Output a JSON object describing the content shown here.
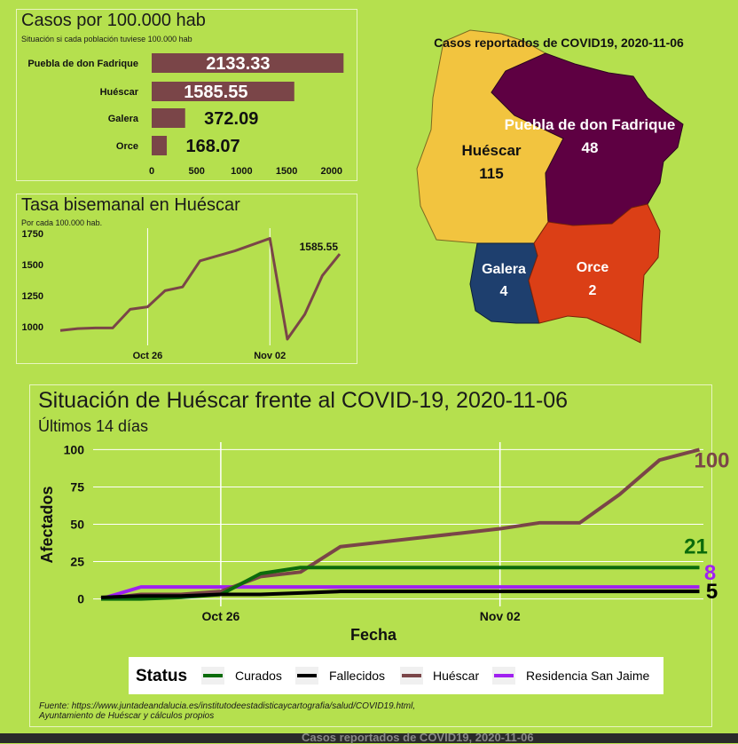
{
  "chart_data": [
    {
      "type": "bar",
      "title": "Casos por 100.000 hab",
      "subtitle": "Situación si cada población tuviese 100.000 hab",
      "categories": [
        "Puebla de don Fadrique",
        "Huéscar",
        "Galera",
        "Orce"
      ],
      "values": [
        2133.33,
        1585.55,
        372.09,
        168.07
      ],
      "value_labels": [
        "2133.33",
        "1585.55",
        "372.09",
        "168.07"
      ],
      "xlim": [
        0,
        2150
      ],
      "xticks": [
        "0",
        "500",
        "1000",
        "1500",
        "2000"
      ],
      "bar_color": "#7a4548"
    },
    {
      "type": "line",
      "title": "Tasa bisemanal en Huéscar",
      "subtitle": "Por cada 100.000 hab.",
      "x": [
        "2020-10-21",
        "2020-10-22",
        "2020-10-23",
        "2020-10-24",
        "2020-10-25",
        "2020-10-26",
        "2020-10-27",
        "2020-10-28",
        "2020-10-29",
        "2020-10-30",
        "2020-10-31",
        "2020-11-01",
        "2020-11-02",
        "2020-11-03",
        "2020-11-04",
        "2020-11-05",
        "2020-11-06"
      ],
      "values": [
        970,
        985,
        990,
        990,
        1140,
        1160,
        1290,
        1320,
        1530,
        1570,
        1610,
        1660,
        1710,
        900,
        1100,
        1410,
        1585.55
      ],
      "ylim": [
        850,
        1750
      ],
      "yticks": [
        "1000",
        "1250",
        "1500",
        "1750"
      ],
      "xticks": [
        "Oct 26",
        "Nov 02"
      ],
      "annotation": "1585.55",
      "line_color": "#7a4548"
    },
    {
      "type": "line",
      "title": "Situación de Huéscar frente al COVID-19, 2020-11-06",
      "subtitle": "Últimos 14 días",
      "xlabel": "Fecha",
      "ylabel": "Afectados",
      "x": [
        "2020-10-23",
        "2020-10-24",
        "2020-10-25",
        "2020-10-26",
        "2020-10-27",
        "2020-10-28",
        "2020-10-29",
        "2020-10-30",
        "2020-10-31",
        "2020-11-01",
        "2020-11-02",
        "2020-11-03",
        "2020-11-04",
        "2020-11-05",
        "2020-11-06",
        "2020-11-07"
      ],
      "ylim": [
        -5,
        105
      ],
      "yticks": [
        "0",
        "25",
        "50",
        "75",
        "100"
      ],
      "xticks": [
        "Oct 26",
        "Nov 02"
      ],
      "series": [
        {
          "name": "Curados",
          "color": "#0b6b0b",
          "values": [
            0,
            0,
            1,
            3,
            17,
            21,
            21,
            21,
            21,
            21,
            21,
            21,
            21,
            21,
            21,
            21
          ],
          "end_label": "21"
        },
        {
          "name": "Fallecidos",
          "color": "#000000",
          "values": [
            1,
            2,
            2,
            3,
            3,
            4,
            5,
            5,
            5,
            5,
            5,
            5,
            5,
            5,
            5,
            5
          ],
          "end_label": "5"
        },
        {
          "name": "Huéscar",
          "color": "#7a4548",
          "values": [
            0,
            3,
            3,
            5,
            15,
            18,
            35,
            38,
            41,
            44,
            47,
            51,
            51,
            70,
            93,
            100
          ],
          "end_label": "100"
        },
        {
          "name": "Residencia San Jaime",
          "color": "#a020f0",
          "values": [
            0,
            8,
            8,
            8,
            8,
            8,
            8,
            8,
            8,
            8,
            8,
            8,
            8,
            8,
            8,
            8
          ],
          "end_label": "8"
        }
      ],
      "legend_title": "Status",
      "legend_position": "bottom"
    }
  ],
  "map": {
    "title": "Casos reportados de COVID19, 2020-11-06",
    "regions": [
      {
        "name": "Puebla de don Fadrique",
        "cases": "48",
        "color": "#5e0042"
      },
      {
        "name": "Huéscar",
        "cases": "115",
        "color": "#f2c43f"
      },
      {
        "name": "Galera",
        "cases": "4",
        "color": "#1e3f6e"
      },
      {
        "name": "Orce",
        "cases": "2",
        "color": "#db3f16"
      }
    ]
  },
  "source": {
    "line1": "Fuente: https://www.juntadeandalucia.es/institutodeestadisticaycartografia/salud/COVID19.html,",
    "line2": "Ayuntamiento de Huéscar y cálculos propios"
  },
  "bottom_strip_text": "Casos reportados de COVID19, 2020-11-06"
}
